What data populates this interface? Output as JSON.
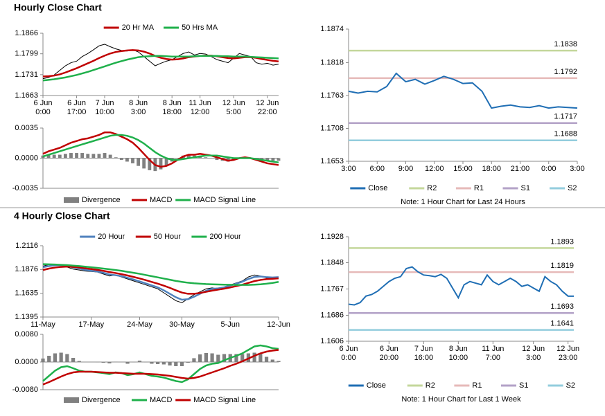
{
  "chart_data": [
    {
      "type": "line",
      "title": "Hourly Close Chart",
      "legend": "top",
      "categories": [
        "6 Jun\n0:00",
        null,
        null,
        null,
        null,
        null,
        "6 Jun\n17:00",
        null,
        null,
        null,
        null,
        "7 Jun\n10:00",
        null,
        null,
        null,
        null,
        null,
        "8 Jun\n3:00",
        null,
        null,
        null,
        null,
        null,
        "8 Jun\n18:00",
        null,
        null,
        null,
        null,
        "11 Jun\n12:00",
        null,
        null,
        null,
        null,
        null,
        "12 Jun\n5:00",
        null,
        null,
        null,
        null,
        null,
        "12 Jun\n22:00",
        null,
        null
      ],
      "ylim": [
        1.1663,
        1.1866
      ],
      "yticks": [
        1.1663,
        1.1731,
        1.1799,
        1.1866
      ],
      "price": {
        "color": "#000000",
        "values": [
          1.1718,
          1.1722,
          1.173,
          1.1745,
          1.176,
          1.177,
          1.1775,
          1.179,
          1.18,
          1.1812,
          1.1825,
          1.183,
          1.1822,
          1.1815,
          1.181,
          1.1808,
          1.1812,
          1.1805,
          1.179,
          1.1775,
          1.176,
          1.1768,
          1.1775,
          1.178,
          1.179,
          1.18,
          1.1805,
          1.1795,
          1.18,
          1.1798,
          1.179,
          1.178,
          1.1775,
          1.177,
          1.1785,
          1.18,
          1.1795,
          1.179,
          1.177,
          1.1765,
          1.1768,
          1.1762,
          1.1765
        ]
      },
      "series": [
        {
          "name": "20 Hr MA",
          "color": "#c00000",
          "values": [
            1.1725,
            1.1726,
            1.1728,
            1.1732,
            1.1738,
            1.1745,
            1.1752,
            1.176,
            1.1768,
            1.1776,
            1.1785,
            1.1793,
            1.18,
            1.1805,
            1.1808,
            1.181,
            1.1811,
            1.181,
            1.1806,
            1.18,
            1.1792,
            1.1786,
            1.1782,
            1.178,
            1.1781,
            1.1784,
            1.1788,
            1.179,
            1.1792,
            1.1793,
            1.1793,
            1.1791,
            1.1788,
            1.1785,
            1.1784,
            1.1786,
            1.1788,
            1.1788,
            1.1786,
            1.1782,
            1.1779,
            1.1776,
            1.1774
          ]
        },
        {
          "name": "50 Hrs MA",
          "color": "#1fb04b",
          "values": [
            1.1712,
            1.1714,
            1.1716,
            1.1719,
            1.1722,
            1.1726,
            1.173,
            1.1735,
            1.174,
            1.1746,
            1.1752,
            1.1758,
            1.1764,
            1.177,
            1.1775,
            1.178,
            1.1784,
            1.1788,
            1.179,
            1.1791,
            1.1792,
            1.1792,
            1.1791,
            1.179,
            1.179,
            1.179,
            1.179,
            1.1791,
            1.1792,
            1.1792,
            1.1792,
            1.1792,
            1.1791,
            1.1791,
            1.179,
            1.179,
            1.179,
            1.1789,
            1.1788,
            1.1787,
            1.1786,
            1.1785,
            1.1784
          ]
        }
      ]
    },
    {
      "type": "combo",
      "legend": "bottom",
      "ylim": [
        -0.0035,
        0.0035
      ],
      "yticks": [
        -0.0035,
        {
          "value": 0,
          "label": "0.0000"
        },
        0.0035
      ],
      "series": [
        {
          "name": "Divergence",
          "style": "bar",
          "color": "#808080",
          "values": [
            0.0003,
            0.0004,
            0.0004,
            0.0004,
            0.0005,
            0.0006,
            0.0006,
            0.0006,
            0.0005,
            0.0005,
            0.0005,
            0.0006,
            0.0004,
            0.0001,
            -0.0002,
            -0.0004,
            -0.0006,
            -0.0009,
            -0.0012,
            -0.0014,
            -0.0015,
            -0.0013,
            -0.0009,
            -0.0004,
            0.0,
            0.0003,
            0.0004,
            0.0003,
            0.0003,
            0.0001,
            0.0,
            -0.0002,
            -0.0003,
            -0.0004,
            -0.0002,
            0.0,
            0.0001,
            0.0,
            -0.0001,
            -0.0002,
            -0.0003,
            -0.0003,
            -0.0003
          ]
        },
        {
          "name": "MACD",
          "color": "#c00000",
          "values": [
            0.0005,
            0.0008,
            0.001,
            0.0012,
            0.0015,
            0.0018,
            0.002,
            0.0022,
            0.0023,
            0.0025,
            0.0027,
            0.003,
            0.003,
            0.0028,
            0.0025,
            0.0022,
            0.0018,
            0.0012,
            0.0005,
            -0.0002,
            -0.0008,
            -0.001,
            -0.0009,
            -0.0006,
            -0.0002,
            0.0002,
            0.0004,
            0.0004,
            0.0005,
            0.0004,
            0.0003,
            0.0001,
            -0.0001,
            -0.0003,
            -0.0002,
            0.0,
            0.0001,
            0.0,
            -0.0002,
            -0.0004,
            -0.0006,
            -0.0007,
            -0.0008
          ]
        },
        {
          "name": "MACD Signal Line",
          "color": "#1fb04b",
          "values": [
            0.0002,
            0.0004,
            0.0006,
            0.0008,
            0.001,
            0.0012,
            0.0014,
            0.0016,
            0.0018,
            0.002,
            0.0022,
            0.0024,
            0.0026,
            0.0027,
            0.0027,
            0.0026,
            0.0024,
            0.0021,
            0.0017,
            0.0012,
            0.0007,
            0.0003,
            0.0,
            -0.0002,
            -0.0002,
            -0.0001,
            0.0,
            0.0001,
            0.0002,
            0.0003,
            0.0003,
            0.0003,
            0.0002,
            0.0001,
            0.0,
            0.0,
            0.0,
            0.0,
            -0.0001,
            -0.0002,
            -0.0003,
            -0.0004,
            -0.0005
          ]
        }
      ]
    },
    {
      "type": "line",
      "legend": "bottom",
      "note": "Note: 1 Hour Chart for Last 24 Hours",
      "categories": [
        "3:00",
        null,
        null,
        "6:00",
        null,
        null,
        "9:00",
        null,
        null,
        "12:00",
        null,
        null,
        "15:00",
        null,
        null,
        "18:00",
        null,
        null,
        "21:00",
        null,
        null,
        "0:00",
        null,
        null,
        "3:00"
      ],
      "ylim": [
        1.1653,
        1.1874
      ],
      "yticks": [
        1.1653,
        1.1708,
        1.1763,
        1.1818,
        1.1874
      ],
      "series": [
        {
          "name": "Close",
          "color": "#1f6eb4",
          "values": [
            1.177,
            1.1767,
            1.177,
            1.1769,
            1.1778,
            1.18,
            1.1786,
            1.179,
            1.1782,
            1.1788,
            1.1795,
            1.179,
            1.1783,
            1.1784,
            1.177,
            1.1742,
            1.1745,
            1.1747,
            1.1744,
            1.1743,
            1.1746,
            1.1742,
            1.1744,
            1.1743,
            1.1742
          ]
        }
      ],
      "levels": [
        {
          "name": "R2",
          "value": 1.1838,
          "color": "#c4d79b"
        },
        {
          "name": "R1",
          "value": 1.1792,
          "color": "#e6b9b8"
        },
        {
          "name": "S1",
          "value": 1.1717,
          "color": "#b3a2c7"
        },
        {
          "name": "S2",
          "value": 1.1688,
          "color": "#93cddd"
        }
      ]
    },
    {
      "type": "line",
      "title": "4 Hourly Close Chart",
      "legend": "top",
      "categories": [
        "11-May",
        null,
        null,
        null,
        null,
        null,
        null,
        null,
        "17-May",
        null,
        null,
        null,
        null,
        null,
        null,
        null,
        "24-May",
        null,
        null,
        null,
        null,
        null,
        null,
        "30-May",
        null,
        null,
        null,
        null,
        null,
        null,
        null,
        "5-Jun",
        null,
        null,
        null,
        null,
        null,
        null,
        null,
        "12-Jun"
      ],
      "ylim": [
        1.1395,
        1.2116
      ],
      "yticks": [
        1.1395,
        1.1635,
        1.1876,
        1.2116
      ],
      "price": {
        "color": "#000000",
        "values": [
          1.191,
          1.1925,
          1.193,
          1.192,
          1.19,
          1.188,
          1.187,
          1.186,
          1.1855,
          1.185,
          1.183,
          1.181,
          1.182,
          1.18,
          1.178,
          1.176,
          1.174,
          1.172,
          1.17,
          1.168,
          1.164,
          1.16,
          1.156,
          1.154,
          1.158,
          1.162,
          1.165,
          1.168,
          1.169,
          1.168,
          1.17,
          1.172,
          1.174,
          1.176,
          1.18,
          1.182,
          1.181,
          1.179,
          1.179,
          1.18
        ]
      },
      "series": [
        {
          "name": "20 Hour",
          "color": "#4f81bd",
          "values": [
            1.19,
            1.191,
            1.1918,
            1.192,
            1.1912,
            1.1898,
            1.1885,
            1.1872,
            1.1862,
            1.1855,
            1.1842,
            1.1825,
            1.1818,
            1.1808,
            1.1792,
            1.1774,
            1.1755,
            1.1735,
            1.1715,
            1.1695,
            1.1665,
            1.163,
            1.1595,
            1.157,
            1.1575,
            1.16,
            1.163,
            1.166,
            1.168,
            1.1685,
            1.1695,
            1.1712,
            1.1732,
            1.1752,
            1.178,
            1.18,
            1.1805,
            1.1798,
            1.1795,
            1.1798
          ]
        },
        {
          "name": "50 Hour",
          "color": "#c00000",
          "values": [
            1.187,
            1.1885,
            1.1895,
            1.1902,
            1.1905,
            1.1902,
            1.1896,
            1.1888,
            1.188,
            1.1872,
            1.1862,
            1.185,
            1.184,
            1.1828,
            1.1815,
            1.18,
            1.1785,
            1.1768,
            1.175,
            1.1732,
            1.1712,
            1.169,
            1.1665,
            1.1642,
            1.163,
            1.163,
            1.1638,
            1.165,
            1.1662,
            1.1672,
            1.1682,
            1.1694,
            1.1708,
            1.1722,
            1.174,
            1.1758,
            1.177,
            1.1778,
            1.1782,
            1.1786
          ]
        },
        {
          "name": "200 Hour",
          "color": "#1fb04b",
          "values": [
            1.193,
            1.1928,
            1.1926,
            1.1923,
            1.192,
            1.1915,
            1.191,
            1.1904,
            1.1898,
            1.1892,
            1.1885,
            1.1878,
            1.187,
            1.1862,
            1.1852,
            1.1842,
            1.1832,
            1.182,
            1.1808,
            1.1796,
            1.1784,
            1.1772,
            1.176,
            1.175,
            1.1742,
            1.1736,
            1.1732,
            1.1728,
            1.1726,
            1.1724,
            1.1722,
            1.1721,
            1.172,
            1.172,
            1.172,
            1.1722,
            1.1726,
            1.1732,
            1.174,
            1.175
          ]
        }
      ]
    },
    {
      "type": "combo",
      "legend": "bottom",
      "ylim": [
        -0.008,
        0.008
      ],
      "yticks": [
        {
          "value": -0.008,
          "label": "-0.0080"
        },
        {
          "value": 0,
          "label": "0.0000"
        },
        {
          "value": 0.008,
          "label": "0.0080"
        }
      ],
      "series": [
        {
          "name": "Divergence",
          "style": "bar",
          "color": "#808080",
          "values": [
            0.001,
            0.0018,
            0.0025,
            0.0027,
            0.0023,
            0.0012,
            0.0003,
            0.0,
            0.0,
            -0.0001,
            -0.0002,
            -0.0004,
            0.0001,
            0.0,
            -0.0005,
            -0.0001,
            0.0004,
            -0.0001,
            -0.0005,
            -0.0006,
            -0.0007,
            -0.001,
            -0.0012,
            -0.0012,
            -0.0002,
            0.0011,
            0.0022,
            0.0026,
            0.0025,
            0.0021,
            0.0023,
            0.0023,
            0.0023,
            0.0023,
            0.0025,
            0.0027,
            0.0023,
            0.0015,
            0.0007,
            0.0003
          ]
        },
        {
          "name": "MACD",
          "color": "#1fb04b",
          "values": [
            -0.0055,
            -0.004,
            -0.0025,
            -0.0015,
            -0.0012,
            -0.0018,
            -0.0025,
            -0.0028,
            -0.0028,
            -0.003,
            -0.0032,
            -0.0035,
            -0.003,
            -0.0032,
            -0.0038,
            -0.0035,
            -0.003,
            -0.0035,
            -0.004,
            -0.0042,
            -0.0045,
            -0.005,
            -0.0055,
            -0.0058,
            -0.005,
            -0.0035,
            -0.002,
            -0.001,
            -0.0005,
            -0.0003,
            0.0005,
            0.0012,
            0.0018,
            0.0025,
            0.0035,
            0.0045,
            0.0048,
            0.0045,
            0.004,
            0.0038
          ]
        },
        {
          "name": "MACD Signal Line",
          "color": "#c00000",
          "values": [
            -0.0065,
            -0.0058,
            -0.005,
            -0.0042,
            -0.0035,
            -0.003,
            -0.0028,
            -0.0028,
            -0.0028,
            -0.0029,
            -0.003,
            -0.0031,
            -0.0031,
            -0.0032,
            -0.0033,
            -0.0034,
            -0.0034,
            -0.0034,
            -0.0035,
            -0.0036,
            -0.0038,
            -0.004,
            -0.0043,
            -0.0046,
            -0.0048,
            -0.0046,
            -0.0042,
            -0.0036,
            -0.003,
            -0.0024,
            -0.0018,
            -0.0011,
            -0.0005,
            0.0002,
            0.001,
            0.0018,
            0.0025,
            0.003,
            0.0033,
            0.0035
          ]
        }
      ]
    },
    {
      "type": "line",
      "legend": "bottom",
      "note": "Note: 1 Hour Chart for Last 1 Week",
      "categories": [
        "6 Jun\n0:00",
        null,
        null,
        null,
        null,
        null,
        null,
        "6 Jun\n20:00",
        null,
        null,
        null,
        null,
        null,
        "7 Jun\n16:00",
        null,
        null,
        null,
        null,
        null,
        "8 Jun\n10:00",
        null,
        null,
        null,
        null,
        null,
        "11 Jun\n7:00",
        null,
        null,
        null,
        null,
        null,
        null,
        "12 Jun\n3:00",
        null,
        null,
        null,
        null,
        null,
        "12 Jun\n23:00",
        null
      ],
      "ylim": [
        1.1606,
        1.1928
      ],
      "yticks": [
        1.1606,
        1.1686,
        1.1767,
        1.1848,
        1.1928
      ],
      "series": [
        {
          "name": "Close",
          "color": "#1f6eb4",
          "values": [
            1.172,
            1.1718,
            1.1725,
            1.1745,
            1.175,
            1.176,
            1.1775,
            1.179,
            1.18,
            1.1805,
            1.183,
            1.1835,
            1.182,
            1.181,
            1.1808,
            1.1805,
            1.1812,
            1.18,
            1.177,
            1.174,
            1.178,
            1.179,
            1.1785,
            1.178,
            1.181,
            1.179,
            1.178,
            1.179,
            1.18,
            1.179,
            1.1775,
            1.178,
            1.177,
            1.176,
            1.1805,
            1.179,
            1.178,
            1.176,
            1.1745,
            1.1745
          ]
        }
      ],
      "levels": [
        {
          "name": "R2",
          "value": 1.1893,
          "color": "#c4d79b"
        },
        {
          "name": "R1",
          "value": 1.1819,
          "color": "#e6b9b8"
        },
        {
          "name": "S1",
          "value": 1.1693,
          "color": "#b3a2c7"
        },
        {
          "name": "S2",
          "value": 1.1641,
          "color": "#93cddd"
        }
      ]
    }
  ]
}
